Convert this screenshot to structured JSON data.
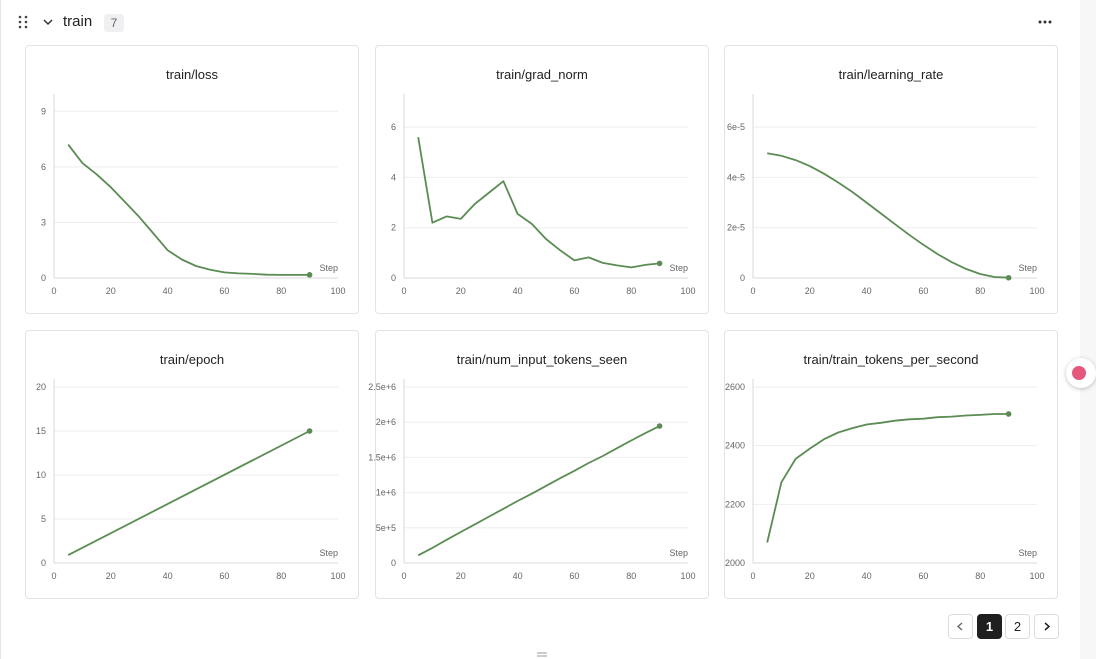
{
  "group": {
    "title": "train",
    "count": "7"
  },
  "colors": {
    "series": "#5b8c53"
  },
  "pagination": {
    "pages": [
      "1",
      "2"
    ],
    "current": "1"
  },
  "chart_data": [
    {
      "type": "line",
      "title": "train/loss",
      "xlabel": "Step",
      "xlim": [
        0,
        100
      ],
      "ylim": [
        0,
        9.5
      ],
      "xticks": [
        0,
        20,
        40,
        60,
        80,
        100
      ],
      "yticks": [
        0,
        3,
        6,
        9
      ],
      "ytick_labels": [
        "0",
        "3",
        "6",
        "9"
      ],
      "x": [
        5,
        10,
        15,
        20,
        25,
        30,
        35,
        40,
        45,
        50,
        55,
        60,
        65,
        70,
        75,
        80,
        85,
        90
      ],
      "y": [
        7.2,
        6.2,
        5.6,
        4.9,
        4.1,
        3.3,
        2.4,
        1.5,
        1.0,
        0.65,
        0.45,
        0.3,
        0.25,
        0.22,
        0.18,
        0.17,
        0.17,
        0.17
      ]
    },
    {
      "type": "line",
      "title": "train/grad_norm",
      "xlabel": "Step",
      "xlim": [
        0,
        100
      ],
      "ylim": [
        0,
        7
      ],
      "xticks": [
        0,
        20,
        40,
        60,
        80,
        100
      ],
      "yticks": [
        0,
        2,
        4,
        6
      ],
      "ytick_labels": [
        "0",
        "2",
        "4",
        "6"
      ],
      "x": [
        5,
        10,
        15,
        20,
        25,
        30,
        35,
        40,
        45,
        50,
        55,
        60,
        65,
        70,
        75,
        80,
        85,
        90
      ],
      "y": [
        5.6,
        2.2,
        2.45,
        2.35,
        2.95,
        3.4,
        3.85,
        2.55,
        2.15,
        1.55,
        1.1,
        0.7,
        0.82,
        0.6,
        0.5,
        0.42,
        0.52,
        0.58
      ]
    },
    {
      "type": "line",
      "title": "train/learning_rate",
      "xlabel": "Step",
      "xlim": [
        0,
        100
      ],
      "ylim": [
        0,
        7e-05
      ],
      "xticks": [
        0,
        20,
        40,
        60,
        80,
        100
      ],
      "yticks": [
        0,
        2e-05,
        4e-05,
        6e-05
      ],
      "ytick_labels": [
        "0",
        "2e-5",
        "4e-5",
        "6e-5"
      ],
      "x": [
        5,
        10,
        15,
        20,
        25,
        30,
        35,
        40,
        45,
        50,
        55,
        60,
        65,
        70,
        75,
        80,
        85,
        90
      ],
      "y": [
        4.96e-05,
        4.86e-05,
        4.69e-05,
        4.45e-05,
        4.15e-05,
        3.8e-05,
        3.42e-05,
        3e-05,
        2.57e-05,
        2.14e-05,
        1.72e-05,
        1.32e-05,
        9.5e-06,
        6.3e-06,
        3.6e-06,
        1.6e-06,
        4e-07,
        1e-07
      ]
    },
    {
      "type": "line",
      "title": "train/epoch",
      "xlabel": "Step",
      "xlim": [
        0,
        100
      ],
      "ylim": [
        0,
        20
      ],
      "xticks": [
        0,
        20,
        40,
        60,
        80,
        100
      ],
      "yticks": [
        0,
        5,
        10,
        15,
        20
      ],
      "ytick_labels": [
        "0",
        "5",
        "10",
        "15",
        "20"
      ],
      "x": [
        5,
        90
      ],
      "y": [
        0.9,
        15.0
      ]
    },
    {
      "type": "line",
      "title": "train/num_input_tokens_seen",
      "xlabel": "Step",
      "xlim": [
        0,
        100
      ],
      "ylim": [
        0,
        2500000
      ],
      "xticks": [
        0,
        20,
        40,
        60,
        80,
        100
      ],
      "yticks": [
        0,
        500000,
        1000000,
        1500000,
        2000000,
        2500000
      ],
      "ytick_labels": [
        "0",
        "5e+5",
        "1e+6",
        "1.5e+6",
        "2e+6",
        "2.5e+6"
      ],
      "x": [
        5,
        10,
        15,
        20,
        25,
        30,
        35,
        40,
        45,
        50,
        55,
        60,
        65,
        70,
        75,
        80,
        85,
        90
      ],
      "y": [
        110000,
        215000,
        330000,
        440000,
        550000,
        660000,
        770000,
        880000,
        985000,
        1095000,
        1205000,
        1310000,
        1420000,
        1520000,
        1630000,
        1740000,
        1845000,
        1945000
      ]
    },
    {
      "type": "line",
      "title": "train/train_tokens_per_second",
      "xlabel": "Step",
      "xlim": [
        0,
        100
      ],
      "ylim": [
        2000,
        2600
      ],
      "xticks": [
        0,
        20,
        40,
        60,
        80,
        100
      ],
      "yticks": [
        2000,
        2200,
        2400,
        2600
      ],
      "ytick_labels": [
        "2000",
        "2200",
        "2400",
        "2600"
      ],
      "x": [
        5,
        10,
        15,
        20,
        25,
        30,
        35,
        40,
        45,
        50,
        55,
        60,
        65,
        70,
        75,
        80,
        85,
        90
      ],
      "y": [
        2070,
        2275,
        2355,
        2390,
        2422,
        2445,
        2460,
        2472,
        2478,
        2485,
        2490,
        2492,
        2497,
        2499,
        2503,
        2505,
        2508,
        2508
      ]
    }
  ]
}
